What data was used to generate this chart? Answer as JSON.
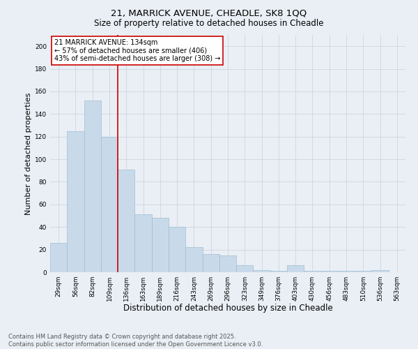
{
  "title_line1": "21, MARRICK AVENUE, CHEADLE, SK8 1QQ",
  "title_line2": "Size of property relative to detached houses in Cheadle",
  "xlabel": "Distribution of detached houses by size in Cheadle",
  "ylabel": "Number of detached properties",
  "categories": [
    "29sqm",
    "56sqm",
    "82sqm",
    "109sqm",
    "136sqm",
    "163sqm",
    "189sqm",
    "216sqm",
    "243sqm",
    "269sqm",
    "296sqm",
    "323sqm",
    "349sqm",
    "376sqm",
    "403sqm",
    "430sqm",
    "456sqm",
    "483sqm",
    "510sqm",
    "536sqm",
    "563sqm"
  ],
  "values": [
    26,
    125,
    152,
    120,
    91,
    51,
    48,
    40,
    22,
    16,
    15,
    6,
    2,
    1,
    6,
    1,
    1,
    1,
    1,
    2,
    0
  ],
  "bar_color": "#c8daea",
  "bar_edge_color": "#a0bcd0",
  "vline_x_idx": 4,
  "vline_color": "#cc0000",
  "annotation_text": "21 MARRICK AVENUE: 134sqm\n← 57% of detached houses are smaller (406)\n43% of semi-detached houses are larger (308) →",
  "annotation_box_facecolor": "#ffffff",
  "annotation_box_edgecolor": "#cc0000",
  "ylim": [
    0,
    210
  ],
  "yticks": [
    0,
    20,
    40,
    60,
    80,
    100,
    120,
    140,
    160,
    180,
    200
  ],
  "bg_color": "#eaeff5",
  "plot_bg_color": "#eaeff5",
  "grid_color": "#c8d0dc",
  "footer_line1": "Contains HM Land Registry data © Crown copyright and database right 2025.",
  "footer_line2": "Contains public sector information licensed under the Open Government Licence v3.0.",
  "title_fontsize": 9.5,
  "subtitle_fontsize": 8.5,
  "xlabel_fontsize": 8.5,
  "ylabel_fontsize": 8,
  "tick_fontsize": 6.5,
  "annotation_fontsize": 7,
  "footer_fontsize": 6
}
